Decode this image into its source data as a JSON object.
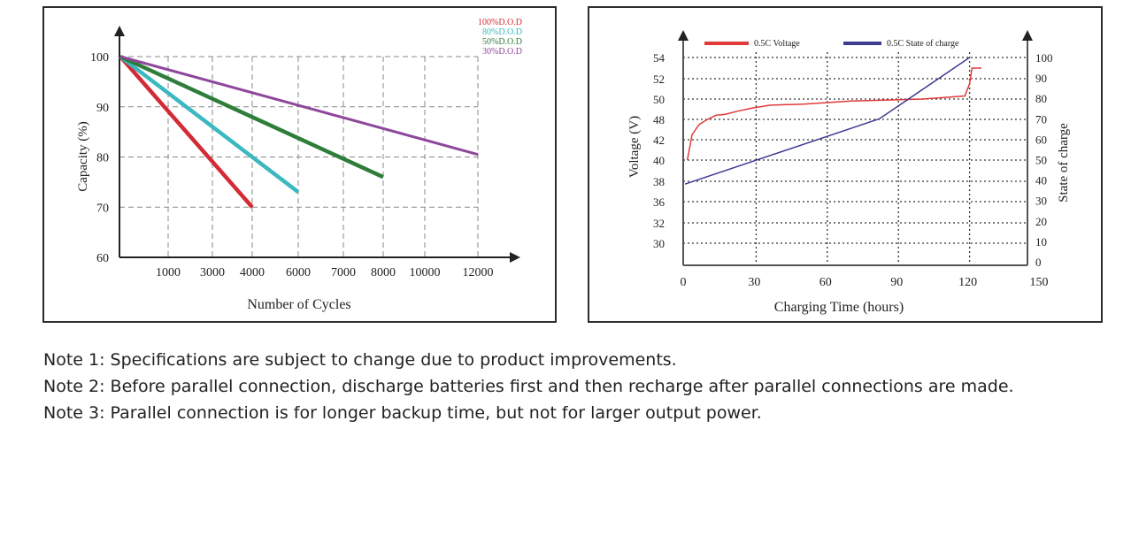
{
  "chart_data": [
    {
      "type": "line",
      "xlabel": "Number of Cycles",
      "ylabel": "Capacity (%)",
      "x_ticks": [
        "1000",
        "3000",
        "4000",
        "6000",
        "7000",
        "8000",
        "10000",
        "12000"
      ],
      "y_ticks": [
        "60",
        "70",
        "80",
        "90",
        "100"
      ],
      "ylim": [
        60,
        100
      ],
      "grid": true,
      "legend_position": "top-right",
      "series": [
        {
          "name": "100%D.O.D",
          "color": "#d42a35",
          "points": [
            [
              0,
              100
            ],
            [
              4000,
              70
            ]
          ]
        },
        {
          "name": "80%D.O.D",
          "color": "#3bb8c0",
          "points": [
            [
              0,
              100
            ],
            [
              6000,
              73
            ]
          ]
        },
        {
          "name": "50%D.O.D",
          "color": "#2f7d3a",
          "points": [
            [
              0,
              100
            ],
            [
              8000,
              76
            ]
          ]
        },
        {
          "name": "30%D.O.D",
          "color": "#8e479b",
          "points": [
            [
              0,
              100
            ],
            [
              12000,
              80.5
            ]
          ]
        }
      ]
    },
    {
      "type": "line",
      "xlabel": "Charging Time (hours)",
      "ylabel_left": "Voltage (V)",
      "ylabel_right": "State of charge",
      "x_ticks": [
        "0",
        "30",
        "60",
        "90",
        "120",
        "150"
      ],
      "xlim": [
        0,
        150
      ],
      "y_left_ticks": [
        "30",
        "32",
        "36",
        "38",
        "40",
        "42",
        "48",
        "50",
        "52",
        "54"
      ],
      "y_right_ticks": [
        "0",
        "10",
        "20",
        "30",
        "40",
        "50",
        "60",
        "70",
        "80",
        "90",
        "100"
      ],
      "y_right_lim": [
        0,
        100
      ],
      "grid": true,
      "legend_position": "top",
      "series": [
        {
          "name": "0.5C Voltage",
          "axis": "left",
          "color": "#e03a3a",
          "points": [
            [
              1,
              40
            ],
            [
              3,
              43.5
            ],
            [
              6,
              46.5
            ],
            [
              9,
              47.8
            ],
            [
              13,
              48.4
            ],
            [
              17,
              48.5
            ],
            [
              22,
              48.8
            ],
            [
              28,
              49.1
            ],
            [
              36,
              49.4
            ],
            [
              50,
              49.5
            ],
            [
              70,
              49.8
            ],
            [
              100,
              50.0
            ],
            [
              112,
              50.2
            ],
            [
              118,
              50.3
            ],
            [
              120,
              51.5
            ],
            [
              121,
              53.0
            ],
            [
              125,
              53.0
            ]
          ]
        },
        {
          "name": "0.5C State of charge",
          "axis": "right",
          "color": "#3d3d8f",
          "points": [
            [
              0,
              38
            ],
            [
              82,
              70
            ],
            [
              120,
              100
            ]
          ]
        }
      ]
    }
  ],
  "notes": [
    "Note 1: Specifications are subject to change due to product improvements.",
    "Note 2: Before parallel connection, discharge batteries first and then recharge after parallel connections are made.",
    "Note 3: Parallel connection is for longer backup time, but not for larger output power."
  ]
}
